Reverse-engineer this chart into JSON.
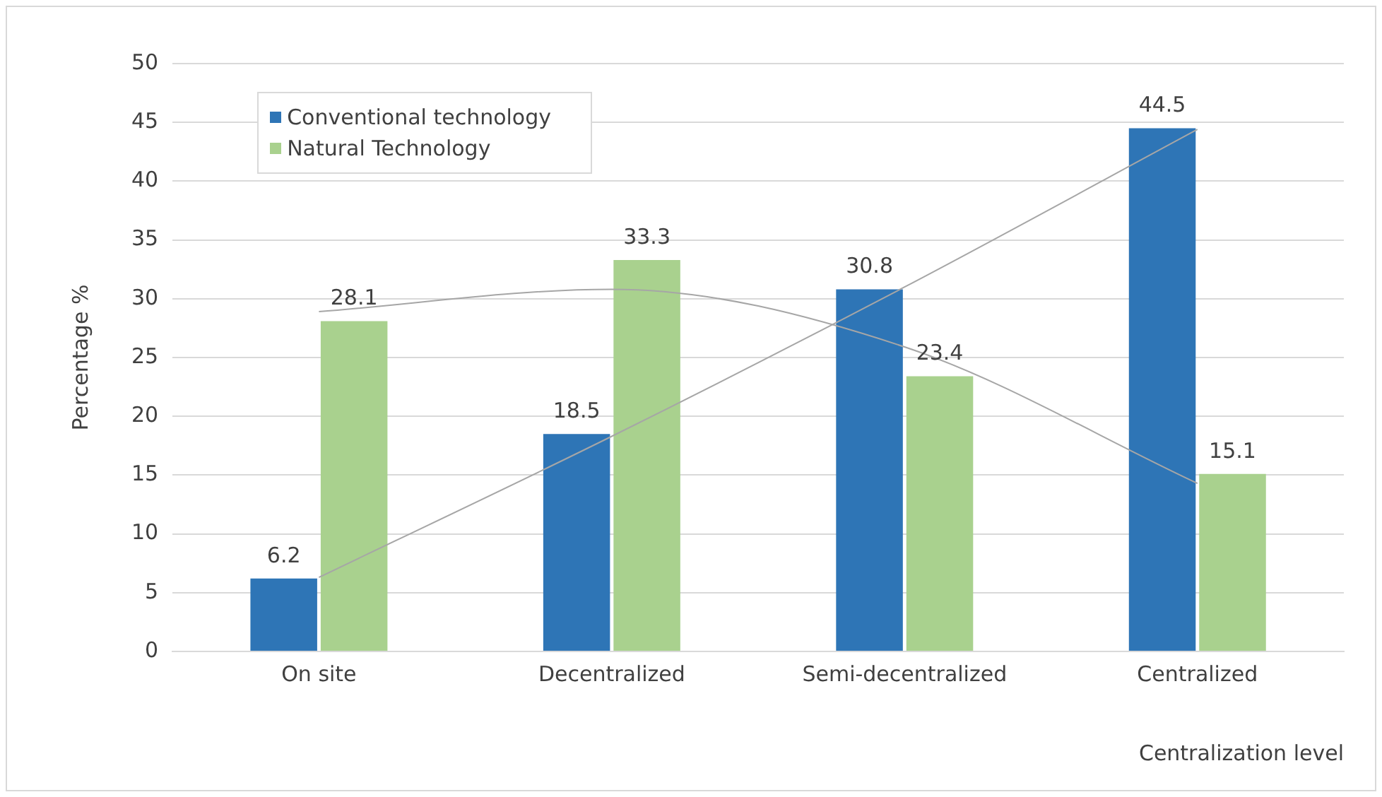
{
  "chart_data": {
    "type": "bar",
    "xlabel": "Centralization level",
    "ylabel": "Percentage %",
    "categories": [
      "On site",
      "Decentralized",
      "Semi-decentralized",
      "Centralized"
    ],
    "series": [
      {
        "name": "Conventional technology",
        "color": "#2e75b6",
        "values": [
          6.2,
          18.5,
          30.8,
          44.5
        ],
        "value_labels": [
          "6.2",
          "18.5",
          "30.8",
          "44.5"
        ]
      },
      {
        "name": "Natural Technology",
        "color": "#a9d18e",
        "values": [
          28.1,
          33.3,
          23.4,
          15.1
        ],
        "value_labels": [
          "28.1",
          "33.3",
          "23.4",
          "15.1"
        ]
      },
      {
        "type": "line",
        "color": "#a6a6a6",
        "values": [
          6.3,
          18.3,
          31.0,
          44.4
        ]
      },
      {
        "type": "line",
        "color": "#a6a6a6",
        "values": [
          28.9,
          30.8,
          25.9,
          14.3
        ]
      }
    ],
    "ylim": [
      0,
      50
    ],
    "yticks": [
      0,
      5,
      10,
      15,
      20,
      25,
      30,
      35,
      40,
      45,
      50
    ],
    "grid": "y",
    "legend": "top left"
  }
}
